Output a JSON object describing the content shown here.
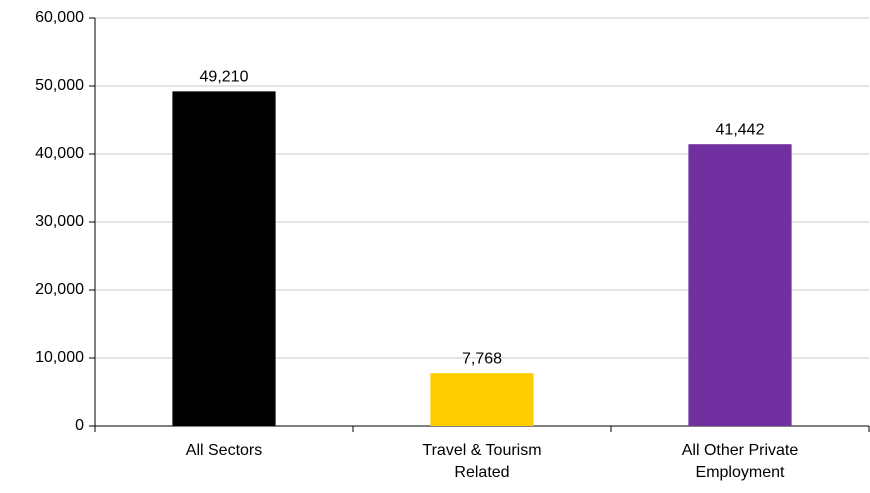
{
  "chart_data": {
    "type": "bar",
    "categories": [
      "All Sectors",
      "Travel & Tourism Related",
      "All Other Private Employment"
    ],
    "values": [
      49210,
      7768,
      41442
    ],
    "value_labels": [
      "49,210",
      "7,768",
      "41,442"
    ],
    "colors": [
      "#000000",
      "#ffcc00",
      "#7030a0"
    ],
    "ylim": [
      0,
      60000
    ],
    "yticks": [
      0,
      {
        "value": 10000,
        "label": "10,000"
      },
      {
        "value": 20000,
        "label": "20,000"
      },
      {
        "value": 30000,
        "label": "30,000"
      },
      {
        "value": 40000,
        "label": "40,000"
      },
      {
        "value": 50000,
        "label": "50,000"
      },
      {
        "value": 60000,
        "label": "60,000"
      }
    ],
    "grid": true
  }
}
